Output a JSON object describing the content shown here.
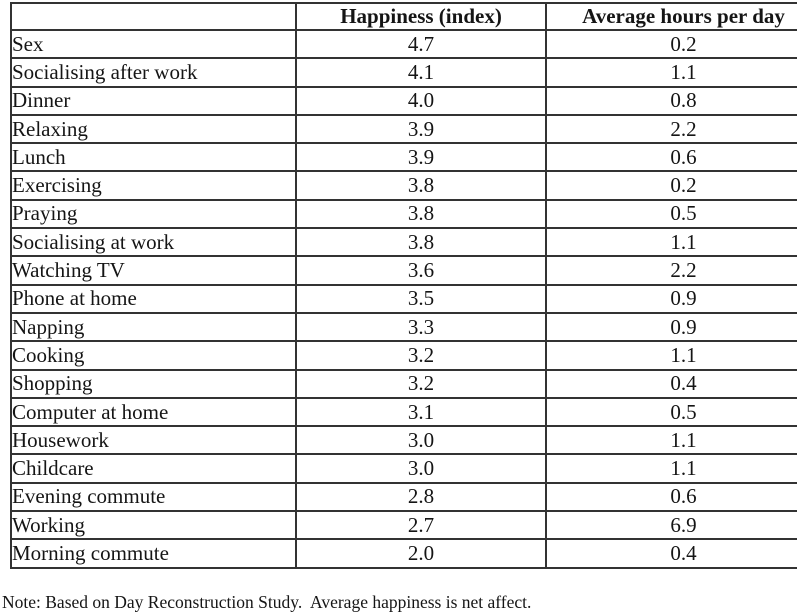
{
  "chart_data": {
    "type": "table",
    "title": "",
    "columns": [
      "",
      "Happiness (index)",
      "Average hours per day"
    ],
    "rows": [
      {
        "activity": "Sex",
        "happiness": "4.7",
        "hours": "0.2"
      },
      {
        "activity": "Socialising after work",
        "happiness": "4.1",
        "hours": "1.1"
      },
      {
        "activity": "Dinner",
        "happiness": "4.0",
        "hours": "0.8"
      },
      {
        "activity": "Relaxing",
        "happiness": "3.9",
        "hours": "2.2"
      },
      {
        "activity": "Lunch",
        "happiness": "3.9",
        "hours": "0.6"
      },
      {
        "activity": "Exercising",
        "happiness": "3.8",
        "hours": "0.2"
      },
      {
        "activity": "Praying",
        "happiness": "3.8",
        "hours": "0.5"
      },
      {
        "activity": "Socialising at work",
        "happiness": "3.8",
        "hours": "1.1"
      },
      {
        "activity": "Watching TV",
        "happiness": "3.6",
        "hours": "2.2"
      },
      {
        "activity": "Phone at home",
        "happiness": "3.5",
        "hours": "0.9"
      },
      {
        "activity": "Napping",
        "happiness": "3.3",
        "hours": "0.9"
      },
      {
        "activity": "Cooking",
        "happiness": "3.2",
        "hours": "1.1"
      },
      {
        "activity": "Shopping",
        "happiness": "3.2",
        "hours": "0.4"
      },
      {
        "activity": "Computer at home",
        "happiness": "3.1",
        "hours": "0.5"
      },
      {
        "activity": "Housework",
        "happiness": "3.0",
        "hours": "1.1"
      },
      {
        "activity": "Childcare",
        "happiness": "3.0",
        "hours": "1.1"
      },
      {
        "activity": "Evening commute",
        "happiness": "2.8",
        "hours": "0.6"
      },
      {
        "activity": "Working",
        "happiness": "2.7",
        "hours": "6.9"
      },
      {
        "activity": "Morning commute",
        "happiness": "2.0",
        "hours": "0.4"
      }
    ],
    "note": "Note: Based on Day Reconstruction Study.  Average happiness is net affect.",
    "layout": {
      "grid": true,
      "border_color": "#333333",
      "text_color": "#151515",
      "background": "#ffffff"
    }
  }
}
